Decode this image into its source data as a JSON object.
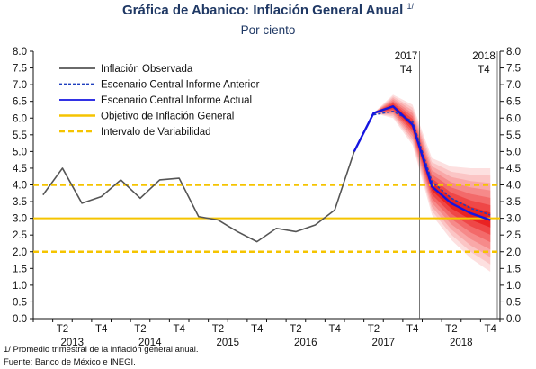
{
  "header": {
    "title": "Gráfica de Abanico: Inflación General Anual",
    "title_sup": "1/",
    "subtitle": "Por ciento"
  },
  "footnotes": {
    "note1": "1/ Promedio trimestral de la inflación general anual.",
    "source": "Fuente: Banco de México e INEGI."
  },
  "chart_data": {
    "type": "line",
    "title": "Gráfica de Abanico: Inflación General Anual",
    "subtitle": "Por ciento",
    "ylim": [
      0,
      8
    ],
    "yticks": [
      "0.0",
      "0.5",
      "1.0",
      "1.5",
      "2.0",
      "2.5",
      "3.0",
      "3.5",
      "4.0",
      "4.5",
      "5.0",
      "5.5",
      "6.0",
      "6.5",
      "7.0",
      "7.5",
      "8.0"
    ],
    "y_axis_both_sides": true,
    "grid": false,
    "legend_position": "top-left",
    "x_quarters": [
      "2013Q1",
      "2013Q2",
      "2013Q3",
      "2013Q4",
      "2014Q1",
      "2014Q2",
      "2014Q3",
      "2014Q4",
      "2015Q1",
      "2015Q2",
      "2015Q3",
      "2015Q4",
      "2016Q1",
      "2016Q2",
      "2016Q3",
      "2016Q4",
      "2017Q1",
      "2017Q2",
      "2017Q3",
      "2017Q4",
      "2018Q1",
      "2018Q2",
      "2018Q3",
      "2018Q4"
    ],
    "x_tick_labels": [
      {
        "q": 1,
        "label": "T2"
      },
      {
        "q": 3,
        "label": "T4"
      },
      {
        "q": 5,
        "label": "T2"
      },
      {
        "q": 7,
        "label": "T4"
      },
      {
        "q": 9,
        "label": "T2"
      },
      {
        "q": 11,
        "label": "T4"
      },
      {
        "q": 13,
        "label": "T2"
      },
      {
        "q": 15,
        "label": "T4"
      },
      {
        "q": 17,
        "label": "T2"
      },
      {
        "q": 19,
        "label": "T4"
      },
      {
        "q": 21,
        "label": "T2"
      },
      {
        "q": 23,
        "label": "T4"
      }
    ],
    "year_labels": [
      {
        "q": 2,
        "label": "2013"
      },
      {
        "q": 6,
        "label": "2014"
      },
      {
        "q": 10,
        "label": "2015"
      },
      {
        "q": 14,
        "label": "2016"
      },
      {
        "q": 18,
        "label": "2017"
      },
      {
        "q": 22,
        "label": "2018"
      }
    ],
    "markers": [
      {
        "q": 19,
        "year": "2017",
        "quarter": "T4"
      },
      {
        "q": 23,
        "year": "2018",
        "quarter": "T4"
      }
    ],
    "series": [
      {
        "name": "Inflación Observada",
        "color": "#555555",
        "style": "solid",
        "start_q": 0,
        "values": [
          3.7,
          4.5,
          3.45,
          3.65,
          4.15,
          3.6,
          4.15,
          4.2,
          3.05,
          2.95,
          2.6,
          2.3,
          2.7,
          2.6,
          2.8,
          3.25,
          5.0,
          6.15
        ]
      },
      {
        "name": "Escenario Central Informe Anterior",
        "color": "#1f3fbf",
        "style": "dotted",
        "start_q": 17,
        "values": [
          6.1,
          6.2,
          5.9,
          4.1,
          3.6,
          3.3,
          3.1
        ]
      },
      {
        "name": "Escenario Central Informe Actual",
        "color": "#1515e0",
        "style": "solid",
        "start_q": 16,
        "values": [
          5.0,
          6.15,
          6.35,
          5.8,
          3.95,
          3.45,
          3.15,
          2.95
        ]
      },
      {
        "name": "Objetivo de Inflación General",
        "color": "#f5c400",
        "style": "solid",
        "constant": 3.0
      },
      {
        "name": "Intervalo de Variabilidad",
        "color": "#f5c400",
        "style": "dashed",
        "constants": [
          2.0,
          4.0
        ]
      }
    ],
    "fan": {
      "start_q": 17,
      "center": [
        6.15,
        6.35,
        5.8,
        3.95,
        3.45,
        3.15,
        2.95
      ],
      "half_widths": [
        0,
        0.35,
        0.6,
        0.85,
        1.1,
        1.35,
        1.55
      ],
      "colors": [
        "#fde0e0",
        "#fbc5c5",
        "#f9a8a8",
        "#f68a8a",
        "#f36a6a",
        "#ef4747",
        "#ea2222"
      ]
    }
  }
}
